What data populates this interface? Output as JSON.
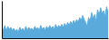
{
  "chart_data": {
    "type": "area",
    "values": [
      55,
      52,
      57,
      51,
      56,
      53,
      55,
      52,
      54,
      51,
      53,
      50,
      55,
      52,
      54,
      51,
      56,
      52,
      55,
      53,
      54,
      52,
      56,
      53,
      55,
      52,
      57,
      53,
      55,
      52,
      56,
      53,
      57,
      54,
      56,
      53,
      58,
      54,
      57,
      55,
      58,
      55,
      59,
      56,
      60,
      57,
      61,
      58,
      62,
      59,
      63,
      60,
      65,
      62,
      67,
      63,
      60,
      56,
      65,
      61,
      70,
      64,
      68,
      61,
      73,
      67,
      75,
      69,
      72,
      66,
      76,
      70
    ],
    "color": "#5aabdc",
    "ylim": [
      44,
      82
    ],
    "tick_labels": false,
    "grid": false
  }
}
